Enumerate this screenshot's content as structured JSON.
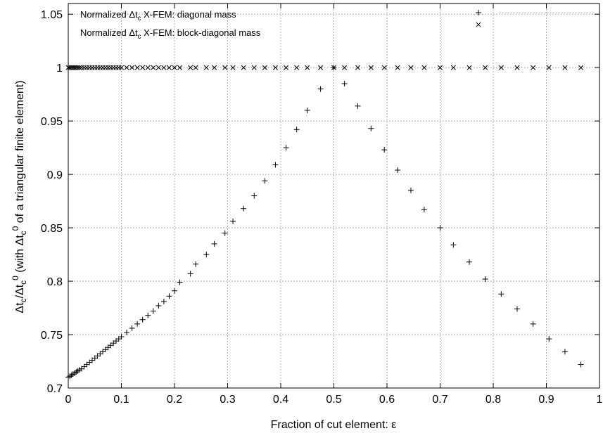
{
  "chart_data": {
    "type": "scatter",
    "xlabel": "Fraction of cut element: ε",
    "ylabel": "Δt_c/Δt_c^0 (with Δt_c^0 of a triangular finite element)",
    "xlim": [
      0,
      1
    ],
    "ylim": [
      0.7,
      1.06
    ],
    "xticks": [
      "0",
      "0.1",
      "0.2",
      "0.3",
      "0.4",
      "0.5",
      "0.6",
      "0.7",
      "0.8",
      "0.9",
      "1"
    ],
    "yticks": [
      "0.7",
      "0.75",
      "0.8",
      "0.85",
      "0.9",
      "0.95",
      "1",
      "1.05"
    ],
    "grid": true,
    "legend_position": "top-left",
    "series": [
      {
        "name": "Normalized Δt_c X-FEM: diagonal mass",
        "marker": "plus",
        "x": [
          0.0,
          0.003,
          0.006,
          0.009,
          0.012,
          0.015,
          0.018,
          0.021,
          0.025,
          0.03,
          0.035,
          0.04,
          0.045,
          0.05,
          0.055,
          0.06,
          0.065,
          0.07,
          0.075,
          0.08,
          0.085,
          0.09,
          0.095,
          0.1,
          0.11,
          0.12,
          0.13,
          0.14,
          0.15,
          0.16,
          0.17,
          0.18,
          0.19,
          0.2,
          0.21,
          0.23,
          0.24,
          0.26,
          0.275,
          0.295,
          0.31,
          0.33,
          0.35,
          0.37,
          0.39,
          0.41,
          0.43,
          0.45,
          0.475,
          0.5,
          0.52,
          0.545,
          0.57,
          0.595,
          0.62,
          0.645,
          0.67,
          0.7,
          0.725,
          0.755,
          0.785,
          0.815,
          0.845,
          0.875,
          0.905,
          0.935,
          0.965
        ],
        "y": [
          0.71,
          0.711,
          0.712,
          0.713,
          0.714,
          0.715,
          0.716,
          0.717,
          0.718,
          0.72,
          0.722,
          0.724,
          0.726,
          0.728,
          0.73,
          0.732,
          0.734,
          0.736,
          0.738,
          0.74,
          0.742,
          0.744,
          0.746,
          0.748,
          0.752,
          0.756,
          0.76,
          0.764,
          0.768,
          0.772,
          0.777,
          0.781,
          0.786,
          0.791,
          0.799,
          0.807,
          0.816,
          0.825,
          0.835,
          0.845,
          0.856,
          0.868,
          0.88,
          0.894,
          0.909,
          0.925,
          0.942,
          0.96,
          0.98,
          1.0,
          0.985,
          0.964,
          0.943,
          0.923,
          0.904,
          0.885,
          0.867,
          0.85,
          0.834,
          0.818,
          0.802,
          0.788,
          0.774,
          0.76,
          0.746,
          0.734,
          0.722
        ]
      },
      {
        "name": "Normalized Δt_c X-FEM: block-diagonal mass",
        "marker": "cross",
        "x": [
          0.0,
          0.003,
          0.006,
          0.009,
          0.012,
          0.015,
          0.018,
          0.021,
          0.025,
          0.03,
          0.035,
          0.04,
          0.045,
          0.05,
          0.055,
          0.06,
          0.065,
          0.07,
          0.075,
          0.08,
          0.085,
          0.09,
          0.095,
          0.1,
          0.11,
          0.12,
          0.13,
          0.14,
          0.15,
          0.16,
          0.17,
          0.18,
          0.19,
          0.2,
          0.21,
          0.23,
          0.24,
          0.26,
          0.275,
          0.295,
          0.31,
          0.33,
          0.35,
          0.37,
          0.39,
          0.41,
          0.43,
          0.45,
          0.475,
          0.5,
          0.52,
          0.545,
          0.57,
          0.595,
          0.62,
          0.645,
          0.67,
          0.7,
          0.725,
          0.755,
          0.785,
          0.815,
          0.845,
          0.875,
          0.905,
          0.935,
          0.965
        ],
        "y": [
          1,
          1,
          1,
          1,
          1,
          1,
          1,
          1,
          1,
          1,
          1,
          1,
          1,
          1,
          1,
          1,
          1,
          1,
          1,
          1,
          1,
          1,
          1,
          1,
          1,
          1,
          1,
          1,
          1,
          1,
          1,
          1,
          1,
          1,
          1,
          1,
          1,
          1,
          1,
          1,
          1,
          1,
          1,
          1,
          1,
          1,
          1,
          1,
          1,
          1,
          1,
          1,
          1,
          1,
          1,
          1,
          1,
          1,
          1,
          1,
          1,
          1,
          1,
          1,
          1,
          1,
          1
        ]
      }
    ]
  }
}
